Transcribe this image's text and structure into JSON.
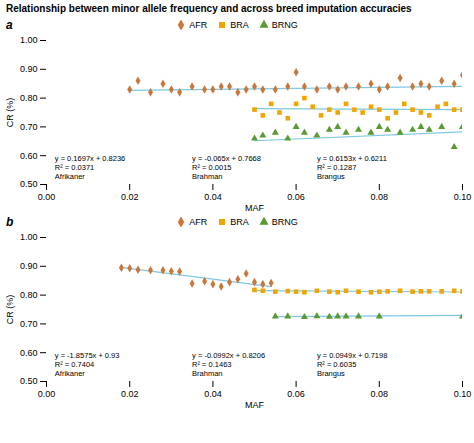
{
  "chart_data": [
    {
      "type": "scatter",
      "title": "Relationship between minor allele frequency and across breed imputation accuracies",
      "subtitle": "a",
      "x_label": "MAF",
      "y_label": "CR (%)",
      "xlim": [
        0.0,
        0.1
      ],
      "ylim": [
        0.5,
        1.0
      ],
      "xticks": [
        {
          "value": 0.0,
          "label": "0.00"
        },
        0.02,
        0.04,
        0.06,
        0.08,
        {
          "value": 0.1,
          "label": "0.10"
        }
      ],
      "yticks": [
        {
          "value": 0.5,
          "label": "0.50"
        },
        {
          "value": 0.6,
          "label": "0.60"
        },
        {
          "value": 0.7,
          "label": "0.70"
        },
        {
          "value": 0.8,
          "label": "0.80"
        },
        {
          "value": 0.9,
          "label": "0.90"
        },
        {
          "value": 1.0,
          "label": "1.00"
        }
      ],
      "grid": false,
      "legend": "top",
      "series": [
        {
          "name": "AFR",
          "color": "#C8773A",
          "marker": "diamond",
          "x": [
            0.02,
            0.022,
            0.025,
            0.028,
            0.03,
            0.032,
            0.035,
            0.038,
            0.04,
            0.042,
            0.044,
            0.046,
            0.048,
            0.05,
            0.052,
            0.055,
            0.058,
            0.06,
            0.062,
            0.065,
            0.068,
            0.07,
            0.072,
            0.075,
            0.078,
            0.08,
            0.082,
            0.085,
            0.088,
            0.09,
            0.092,
            0.095,
            0.098,
            0.1
          ],
          "values": [
            0.83,
            0.86,
            0.82,
            0.85,
            0.83,
            0.82,
            0.84,
            0.83,
            0.83,
            0.84,
            0.84,
            0.82,
            0.83,
            0.84,
            0.83,
            0.83,
            0.84,
            0.89,
            0.84,
            0.83,
            0.84,
            0.83,
            0.84,
            0.84,
            0.85,
            0.83,
            0.84,
            0.87,
            0.84,
            0.85,
            0.84,
            0.86,
            0.85,
            0.88
          ],
          "trend": {
            "x": [
              0.02,
              0.1
            ],
            "values": [
              0.826994,
              0.84057
            ],
            "color": "#7EC8E3"
          },
          "annotation": [
            "y = 0.1697x + 0.8236",
            "R² = 0.0371",
            "Afrikaner"
          ]
        },
        {
          "name": "BRA",
          "color": "#F0A500",
          "marker": "square",
          "x": [
            0.05,
            0.052,
            0.054,
            0.056,
            0.058,
            0.06,
            0.062,
            0.064,
            0.066,
            0.068,
            0.07,
            0.072,
            0.074,
            0.076,
            0.078,
            0.08,
            0.082,
            0.084,
            0.086,
            0.088,
            0.09,
            0.092,
            0.094,
            0.096,
            0.098,
            0.1
          ],
          "values": [
            0.76,
            0.74,
            0.78,
            0.75,
            0.73,
            0.78,
            0.8,
            0.77,
            0.74,
            0.76,
            0.75,
            0.78,
            0.76,
            0.75,
            0.77,
            0.76,
            0.73,
            0.75,
            0.78,
            0.76,
            0.75,
            0.74,
            0.77,
            0.78,
            0.76,
            0.76
          ],
          "trend": {
            "x": [
              0.05,
              0.1
            ],
            "values": [
              0.76355,
              0.7603
            ],
            "color": "#7EC8E3"
          },
          "annotation": [
            "y = -0.065x + 0.7668",
            "R² = 0.0015",
            "Brahman"
          ]
        },
        {
          "name": "BRNG",
          "color": "#5A9A32",
          "marker": "triangle",
          "x": [
            0.05,
            0.052,
            0.055,
            0.058,
            0.06,
            0.062,
            0.065,
            0.068,
            0.07,
            0.072,
            0.075,
            0.078,
            0.08,
            0.082,
            0.085,
            0.088,
            0.09,
            0.092,
            0.095,
            0.098,
            0.1
          ],
          "values": [
            0.66,
            0.67,
            0.68,
            0.66,
            0.7,
            0.68,
            0.67,
            0.69,
            0.7,
            0.68,
            0.69,
            0.68,
            0.7,
            0.69,
            0.68,
            0.69,
            0.7,
            0.69,
            0.7,
            0.63,
            0.7
          ],
          "trend": {
            "x": [
              0.05,
              0.1
            ],
            "values": [
              0.651865,
              0.68263
            ],
            "color": "#7EC8E3"
          },
          "annotation": [
            "y = 0.6153x + 0.6211",
            "R² = 0.1287",
            "Brangus"
          ]
        }
      ]
    },
    {
      "type": "scatter",
      "subtitle": "b",
      "x_label": "MAF",
      "y_label": "CR (%)",
      "xlim": [
        0.0,
        0.1
      ],
      "ylim": [
        0.5,
        1.0
      ],
      "xticks": [
        {
          "value": 0.0,
          "label": "0.00"
        },
        0.02,
        0.04,
        0.06,
        0.08,
        {
          "value": 0.1,
          "label": "0.10"
        }
      ],
      "yticks": [
        {
          "value": 0.5,
          "label": "0.50"
        },
        {
          "value": 0.6,
          "label": "0.60"
        },
        {
          "value": 0.7,
          "label": "0.70"
        },
        {
          "value": 0.8,
          "label": "0.80"
        },
        {
          "value": 0.9,
          "label": "0.90"
        },
        {
          "value": 1.0,
          "label": "1.00"
        }
      ],
      "grid": false,
      "legend": "top",
      "series": [
        {
          "name": "AFR",
          "color": "#C8773A",
          "marker": "diamond",
          "x": [
            0.018,
            0.02,
            0.022,
            0.025,
            0.028,
            0.03,
            0.032,
            0.035,
            0.038,
            0.04,
            0.042,
            0.044,
            0.046,
            0.048,
            0.05,
            0.052,
            0.054
          ],
          "values": [
            0.895,
            0.893,
            0.888,
            0.886,
            0.886,
            0.883,
            0.882,
            0.84,
            0.848,
            0.838,
            0.83,
            0.845,
            0.855,
            0.875,
            0.845,
            0.838,
            0.842
          ],
          "trend": {
            "x": [
              0.018,
              0.054
            ],
            "values": [
              0.896565,
              0.829695
            ],
            "color": "#7EC8E3"
          },
          "annotation": [
            "y = -1.8575x + 0.93",
            "R² = 0.7404",
            "Afrikaner"
          ]
        },
        {
          "name": "BRA",
          "color": "#F0A500",
          "marker": "square",
          "x": [
            0.05,
            0.052,
            0.055,
            0.058,
            0.06,
            0.062,
            0.065,
            0.068,
            0.07,
            0.072,
            0.075,
            0.078,
            0.08,
            0.082,
            0.085,
            0.088,
            0.09,
            0.092,
            0.095,
            0.098,
            0.1
          ],
          "values": [
            0.818,
            0.815,
            0.812,
            0.814,
            0.812,
            0.81,
            0.815,
            0.812,
            0.81,
            0.815,
            0.812,
            0.81,
            0.812,
            0.813,
            0.815,
            0.812,
            0.813,
            0.813,
            0.813,
            0.815,
            0.813
          ],
          "trend": {
            "x": [
              0.05,
              0.1
            ],
            "values": [
              0.81564,
              0.81068
            ],
            "color": "#7EC8E3"
          },
          "annotation": [
            "y = -0.0992x + 0.8206",
            "R² = 0.1463",
            "Brahman"
          ]
        },
        {
          "name": "BRNG",
          "color": "#5A9A32",
          "marker": "triangle",
          "x": [
            0.055,
            0.058,
            0.062,
            0.065,
            0.068,
            0.07,
            0.072,
            0.075,
            0.08,
            0.1
          ],
          "values": [
            0.726,
            0.726,
            0.724,
            0.727,
            0.725,
            0.726,
            0.726,
            0.726,
            0.726,
            0.726
          ],
          "trend": {
            "x": [
              0.055,
              0.1
            ],
            "values": [
              0.7250195,
              0.72929
            ],
            "color": "#7EC8E3"
          },
          "annotation": [
            "y = 0.0949x + 0.7198",
            "R² = 0.6035",
            "Brangus"
          ]
        }
      ]
    }
  ]
}
